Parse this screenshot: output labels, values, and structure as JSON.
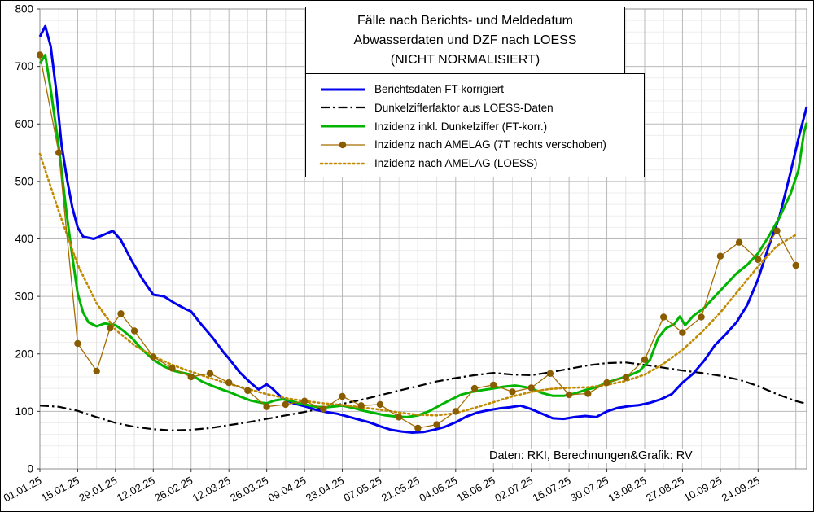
{
  "chart": {
    "title_lines": [
      "Fälle nach Berichts- und Meldedatum",
      "Abwasserdaten und DZF nach LOESS",
      "(NICHT NORMALISIERT)"
    ],
    "source_note": "Daten: RKI, Berechnungen&Grafik: RV"
  },
  "chart_data": {
    "type": "line",
    "title": "Fälle nach Berichts- und Meldedatum, Abwasserdaten und DZF nach LOESS (NICHT NORMALISIERT)",
    "xlabel": "",
    "ylabel": "",
    "x_unit": "date (days since 01.01.25)",
    "x_range_days": [
      0,
      284
    ],
    "ylim": [
      0,
      800
    ],
    "y_ticks": [
      0,
      100,
      200,
      300,
      400,
      500,
      600,
      700,
      800
    ],
    "x_tick_days": [
      0,
      14,
      28,
      42,
      56,
      70,
      84,
      98,
      112,
      126,
      140,
      154,
      168,
      182,
      196,
      210,
      224,
      238,
      252,
      266
    ],
    "x_tick_labels": [
      "01.01.25",
      "15.01.25",
      "29.01.25",
      "12.02.25",
      "26.02.25",
      "12.03.25",
      "26.03.25",
      "09.04.25",
      "23.04.25",
      "07.05.25",
      "21.05.25",
      "04.06.25",
      "18.06.25",
      "02.07.25",
      "16.07.25",
      "30.07.25",
      "13.08.25",
      "27.08.25",
      "10.09.25",
      "24.09.25"
    ],
    "grid": true,
    "legend_position": "top-center-boxed",
    "series": [
      {
        "id": "berichtsdaten",
        "name": "Berichtsdaten FT-korrigiert",
        "color": "#0000ee",
        "style": "solid",
        "width": 3,
        "marker": false,
        "points": [
          [
            0,
            752
          ],
          [
            2,
            770
          ],
          [
            4,
            735
          ],
          [
            6,
            660
          ],
          [
            8,
            565
          ],
          [
            10,
            505
          ],
          [
            12,
            455
          ],
          [
            14,
            420
          ],
          [
            16,
            404
          ],
          [
            20,
            400
          ],
          [
            24,
            408
          ],
          [
            27,
            414
          ],
          [
            30,
            398
          ],
          [
            34,
            362
          ],
          [
            38,
            330
          ],
          [
            42,
            303
          ],
          [
            46,
            300
          ],
          [
            50,
            288
          ],
          [
            54,
            278
          ],
          [
            56,
            274
          ],
          [
            60,
            250
          ],
          [
            64,
            228
          ],
          [
            68,
            203
          ],
          [
            70,
            192
          ],
          [
            74,
            168
          ],
          [
            78,
            150
          ],
          [
            81,
            138
          ],
          [
            84,
            147
          ],
          [
            86,
            140
          ],
          [
            90,
            122
          ],
          [
            94,
            114
          ],
          [
            98,
            109
          ],
          [
            102,
            103
          ],
          [
            106,
            99
          ],
          [
            110,
            96
          ],
          [
            114,
            91
          ],
          [
            118,
            86
          ],
          [
            122,
            81
          ],
          [
            126,
            74
          ],
          [
            130,
            68
          ],
          [
            134,
            65
          ],
          [
            138,
            63
          ],
          [
            142,
            64
          ],
          [
            146,
            68
          ],
          [
            150,
            73
          ],
          [
            154,
            81
          ],
          [
            158,
            91
          ],
          [
            162,
            98
          ],
          [
            166,
            102
          ],
          [
            170,
            105
          ],
          [
            174,
            107
          ],
          [
            178,
            110
          ],
          [
            182,
            104
          ],
          [
            186,
            96
          ],
          [
            190,
            88
          ],
          [
            194,
            87
          ],
          [
            198,
            90
          ],
          [
            202,
            92
          ],
          [
            206,
            90
          ],
          [
            210,
            100
          ],
          [
            214,
            106
          ],
          [
            218,
            109
          ],
          [
            222,
            111
          ],
          [
            226,
            115
          ],
          [
            230,
            121
          ],
          [
            234,
            130
          ],
          [
            238,
            150
          ],
          [
            242,
            166
          ],
          [
            246,
            188
          ],
          [
            250,
            215
          ],
          [
            254,
            234
          ],
          [
            258,
            255
          ],
          [
            262,
            285
          ],
          [
            266,
            330
          ],
          [
            270,
            388
          ],
          [
            274,
            440
          ],
          [
            278,
            515
          ],
          [
            281,
            575
          ],
          [
            284,
            630
          ]
        ]
      },
      {
        "id": "dunkelzifferfaktor",
        "name": "Dunkelzifferfaktor aus LOESS-Daten",
        "color": "#000000",
        "style": "dashdot",
        "width": 2.2,
        "marker": false,
        "points": [
          [
            0,
            110
          ],
          [
            7,
            108
          ],
          [
            14,
            101
          ],
          [
            21,
            90
          ],
          [
            28,
            80
          ],
          [
            35,
            73
          ],
          [
            42,
            69
          ],
          [
            49,
            67
          ],
          [
            56,
            68
          ],
          [
            63,
            71
          ],
          [
            70,
            76
          ],
          [
            77,
            81
          ],
          [
            84,
            87
          ],
          [
            91,
            93
          ],
          [
            98,
            99
          ],
          [
            105,
            106
          ],
          [
            112,
            113
          ],
          [
            119,
            120
          ],
          [
            126,
            128
          ],
          [
            133,
            136
          ],
          [
            140,
            144
          ],
          [
            147,
            152
          ],
          [
            154,
            158
          ],
          [
            161,
            163
          ],
          [
            168,
            167
          ],
          [
            175,
            164
          ],
          [
            182,
            163
          ],
          [
            189,
            168
          ],
          [
            196,
            174
          ],
          [
            203,
            180
          ],
          [
            210,
            184
          ],
          [
            217,
            185
          ],
          [
            224,
            181
          ],
          [
            231,
            176
          ],
          [
            238,
            171
          ],
          [
            245,
            167
          ],
          [
            252,
            162
          ],
          [
            259,
            155
          ],
          [
            266,
            144
          ],
          [
            273,
            130
          ],
          [
            280,
            118
          ],
          [
            284,
            113
          ]
        ]
      },
      {
        "id": "inzidenz-dunkelziffer",
        "name": "Inzidenz inkl. Dunkelziffer (FT-korr.)",
        "color": "#00b400",
        "style": "solid",
        "width": 3,
        "marker": false,
        "points": [
          [
            0,
            705
          ],
          [
            2,
            720
          ],
          [
            4,
            660
          ],
          [
            7,
            560
          ],
          [
            10,
            440
          ],
          [
            12,
            370
          ],
          [
            14,
            305
          ],
          [
            16,
            272
          ],
          [
            18,
            255
          ],
          [
            21,
            248
          ],
          [
            24,
            253
          ],
          [
            28,
            250
          ],
          [
            31,
            240
          ],
          [
            34,
            228
          ],
          [
            38,
            207
          ],
          [
            42,
            190
          ],
          [
            46,
            178
          ],
          [
            50,
            170
          ],
          [
            54,
            166
          ],
          [
            56,
            164
          ],
          [
            60,
            152
          ],
          [
            64,
            144
          ],
          [
            68,
            137
          ],
          [
            70,
            134
          ],
          [
            74,
            126
          ],
          [
            78,
            119
          ],
          [
            82,
            115
          ],
          [
            84,
            114
          ],
          [
            87,
            119
          ],
          [
            90,
            121
          ],
          [
            93,
            118
          ],
          [
            96,
            114
          ],
          [
            98,
            112
          ],
          [
            102,
            108
          ],
          [
            106,
            107
          ],
          [
            110,
            109
          ],
          [
            112,
            110
          ],
          [
            116,
            106
          ],
          [
            120,
            101
          ],
          [
            124,
            97
          ],
          [
            128,
            93
          ],
          [
            132,
            91
          ],
          [
            136,
            90
          ],
          [
            140,
            93
          ],
          [
            144,
            100
          ],
          [
            148,
            110
          ],
          [
            152,
            120
          ],
          [
            156,
            129
          ],
          [
            160,
            134
          ],
          [
            164,
            137
          ],
          [
            168,
            140
          ],
          [
            172,
            143
          ],
          [
            176,
            145
          ],
          [
            180,
            142
          ],
          [
            182,
            140
          ],
          [
            186,
            132
          ],
          [
            190,
            127
          ],
          [
            194,
            127
          ],
          [
            198,
            131
          ],
          [
            202,
            137
          ],
          [
            206,
            142
          ],
          [
            210,
            150
          ],
          [
            214,
            156
          ],
          [
            218,
            162
          ],
          [
            222,
            170
          ],
          [
            226,
            190
          ],
          [
            229,
            228
          ],
          [
            232,
            245
          ],
          [
            235,
            252
          ],
          [
            237,
            265
          ],
          [
            239,
            250
          ],
          [
            242,
            266
          ],
          [
            246,
            280
          ],
          [
            250,
            300
          ],
          [
            254,
            320
          ],
          [
            258,
            340
          ],
          [
            262,
            355
          ],
          [
            266,
            375
          ],
          [
            270,
            405
          ],
          [
            274,
            438
          ],
          [
            278,
            478
          ],
          [
            281,
            520
          ],
          [
            283,
            585
          ],
          [
            284,
            602
          ]
        ]
      },
      {
        "id": "amelag-7t",
        "name": "Inzidenz nach AMELAG (7T rechts verschoben)",
        "color": "#a36d00",
        "marker_color": "#8a5c00",
        "style": "solid",
        "width": 1.3,
        "marker": true,
        "points": [
          [
            0,
            720
          ],
          [
            7,
            550
          ],
          [
            14,
            218
          ],
          [
            21,
            170
          ],
          [
            26,
            245
          ],
          [
            30,
            270
          ],
          [
            35,
            240
          ],
          [
            42,
            195
          ],
          [
            49,
            175
          ],
          [
            56,
            160
          ],
          [
            63,
            166
          ],
          [
            70,
            150
          ],
          [
            77,
            136
          ],
          [
            84,
            108
          ],
          [
            91,
            112
          ],
          [
            98,
            118
          ],
          [
            105,
            104
          ],
          [
            112,
            126
          ],
          [
            119,
            110
          ],
          [
            126,
            112
          ],
          [
            133,
            90
          ],
          [
            140,
            71
          ],
          [
            147,
            77
          ],
          [
            154,
            100
          ],
          [
            161,
            140
          ],
          [
            168,
            146
          ],
          [
            175,
            134
          ],
          [
            182,
            141
          ],
          [
            189,
            166
          ],
          [
            196,
            129
          ],
          [
            203,
            131
          ],
          [
            210,
            150
          ],
          [
            217,
            159
          ],
          [
            224,
            190
          ],
          [
            231,
            264
          ],
          [
            238,
            237
          ],
          [
            245,
            264
          ],
          [
            252,
            370
          ],
          [
            259,
            394
          ],
          [
            266,
            364
          ],
          [
            273,
            414
          ],
          [
            280,
            354
          ]
        ]
      },
      {
        "id": "amelag-loess",
        "name": "Inzidenz nach AMELAG (LOESS)",
        "color": "#c08a00",
        "style": "dotted",
        "width": 2.6,
        "marker": false,
        "points": [
          [
            0,
            548
          ],
          [
            7,
            448
          ],
          [
            14,
            355
          ],
          [
            21,
            288
          ],
          [
            28,
            242
          ],
          [
            35,
            215
          ],
          [
            42,
            196
          ],
          [
            49,
            181
          ],
          [
            56,
            169
          ],
          [
            63,
            158
          ],
          [
            70,
            148
          ],
          [
            77,
            139
          ],
          [
            84,
            130
          ],
          [
            91,
            123
          ],
          [
            98,
            118
          ],
          [
            105,
            114
          ],
          [
            112,
            111
          ],
          [
            119,
            107
          ],
          [
            126,
            103
          ],
          [
            133,
            98
          ],
          [
            140,
            94
          ],
          [
            147,
            93
          ],
          [
            154,
            97
          ],
          [
            161,
            106
          ],
          [
            168,
            116
          ],
          [
            175,
            126
          ],
          [
            182,
            134
          ],
          [
            189,
            139
          ],
          [
            196,
            141
          ],
          [
            203,
            142
          ],
          [
            210,
            146
          ],
          [
            217,
            153
          ],
          [
            224,
            164
          ],
          [
            231,
            183
          ],
          [
            238,
            207
          ],
          [
            245,
            237
          ],
          [
            252,
            272
          ],
          [
            259,
            312
          ],
          [
            266,
            352
          ],
          [
            273,
            388
          ],
          [
            280,
            407
          ]
        ]
      }
    ]
  }
}
